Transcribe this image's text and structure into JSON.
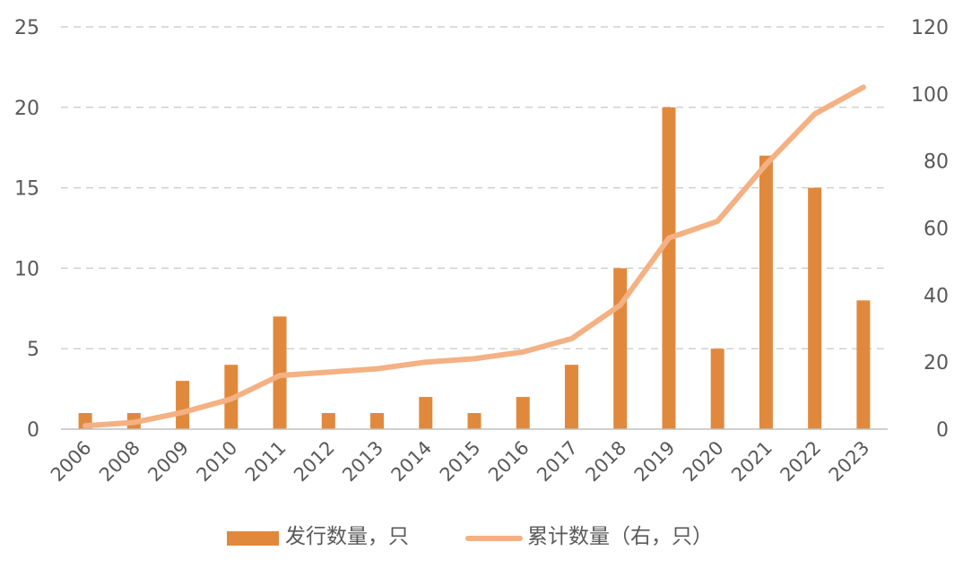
{
  "chart_data": {
    "type": "bar+line",
    "categories": [
      "2006",
      "2008",
      "2009",
      "2010",
      "2011",
      "2012",
      "2013",
      "2014",
      "2015",
      "2016",
      "2017",
      "2018",
      "2019",
      "2020",
      "2021",
      "2022",
      "2023"
    ],
    "series": [
      {
        "name": "发行数量，只",
        "type": "bar",
        "axis": "left",
        "color": "#E0893D",
        "values": [
          1,
          1,
          3,
          4,
          7,
          1,
          1,
          2,
          1,
          2,
          4,
          10,
          20,
          5,
          17,
          15,
          8
        ]
      },
      {
        "name": "累计数量（右，只）",
        "type": "line",
        "axis": "right",
        "color": "#F4B183",
        "values": [
          1,
          2,
          5,
          9,
          16,
          17,
          18,
          20,
          21,
          23,
          27,
          37,
          57,
          62,
          79,
          94,
          102
        ]
      }
    ],
    "y_left": {
      "min": 0,
      "max": 25,
      "ticks": [
        0,
        5,
        10,
        15,
        20,
        25
      ]
    },
    "y_right": {
      "min": 0,
      "max": 120,
      "ticks": [
        0,
        20,
        40,
        60,
        80,
        100,
        120
      ]
    },
    "gridlines": true,
    "legend_position": "bottom"
  }
}
